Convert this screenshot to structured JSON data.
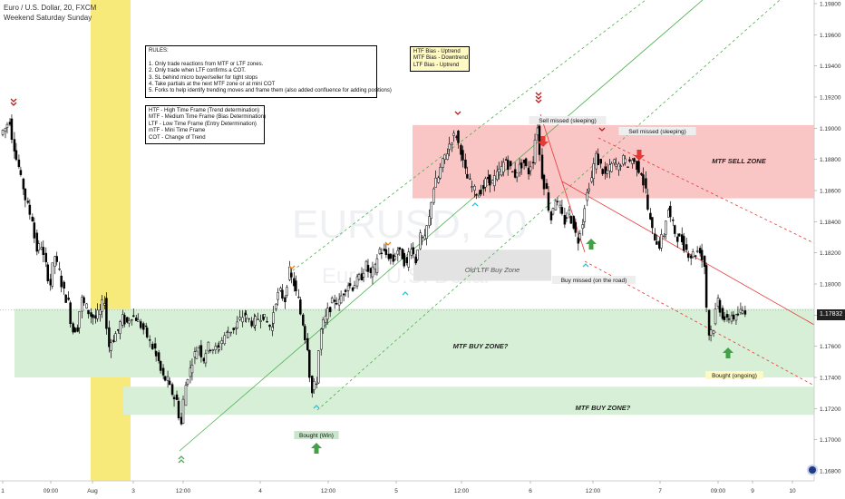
{
  "header": {
    "symbol_line": "Euro / U.S. Dollar, 20, FXCM",
    "session_line": "Weekend Saturday Sunday"
  },
  "watermark": {
    "symbol": "EURUSD, 20",
    "name": "Euro / U.S. Dollar"
  },
  "rules_box": {
    "lines": [
      "RULES:",
      "",
      "1. Only trade reactions from MTF or LTF zones.",
      "2. Only trade when LTF confirms a COT.",
      "3. SL behind micro buyer/seller for tight stops",
      "4. Take partials at the next MTF zone or at mini COT",
      "5. Forks to help identify trending moves and frame them (also added confluence for adding positions)"
    ]
  },
  "legend_box": {
    "lines": [
      "HTF - High Time Frame (Trend determination)",
      "MTF - Medium Time Frame (Bias Determination)",
      "LTF - Low Time Frame (Entry Determination)",
      "mTF - Mini Time Frame",
      "COT - Change of Trend"
    ]
  },
  "bias_box": {
    "lines": [
      "HTF Bias - Uptrend",
      "MTF Bias - Downtrend",
      "LTF Bias - Uptrend"
    ]
  },
  "current_price": "1.17832",
  "colors": {
    "up": "#26a69a",
    "down": "#ef5350",
    "candle": "#000000",
    "buy_zone": "#d7efd7",
    "sell_zone": "#f9c5c5",
    "ltf_zone": "#e3e3e3",
    "weekend": "#f7e97a",
    "fork_green": "#4caf50",
    "fork_red": "#e53935",
    "arrow_green": "#43a047",
    "arrow_red": "#e53935",
    "marker_orange": "#f57c00",
    "marker_darkred": "#b71c1c",
    "marker_cyan": "#26c6da"
  },
  "chart_data": {
    "type": "candlestick",
    "title": "Euro / U.S. Dollar, 20, FXCM",
    "ylim": [
      1.1675,
      1.198
    ],
    "y_ticks": [
      "1.16800",
      "1.17000",
      "1.17200",
      "1.17400",
      "1.17600",
      "1.17800",
      "1.18000",
      "1.18200",
      "1.18400",
      "1.18600",
      "1.18800",
      "1.19000",
      "1.19200",
      "1.19400",
      "1.19600",
      "1.19800"
    ],
    "x_ticks": [
      "1",
      "09:00",
      "Aug",
      "3",
      "12:00",
      "4",
      "12:00",
      "5",
      "12:00",
      "6",
      "12:00",
      "7",
      "09:00",
      "9",
      "10"
    ],
    "grid": false,
    "zones": [
      {
        "label": "MTF SELL ZONE",
        "low": 1.1855,
        "high": 1.1902
      },
      {
        "label": "MTF BUY ZONE?",
        "low": 1.174,
        "high": 1.1784
      },
      {
        "label": "MTF BUY ZONE?",
        "low": 1.1716,
        "high": 1.1734
      },
      {
        "label": "Old LTF Buy Zone",
        "low": 1.1802,
        "high": 1.1822
      }
    ],
    "annotations": [
      "Bought (Win)",
      "Sell missed (sleeping)",
      "Sell missed (sleeping)",
      "Buy missed (on the road)",
      "Bought (ongoing)"
    ],
    "price_path": [
      [
        0,
        1.1896
      ],
      [
        5,
        1.19
      ],
      [
        10,
        1.1905
      ],
      [
        15,
        1.1888
      ],
      [
        20,
        1.1875
      ],
      [
        25,
        1.1862
      ],
      [
        30,
        1.185
      ],
      [
        35,
        1.1842
      ],
      [
        40,
        1.1822
      ],
      [
        45,
        1.1825
      ],
      [
        50,
        1.1812
      ],
      [
        55,
        1.18
      ],
      [
        60,
        1.1818
      ],
      [
        65,
        1.1808
      ],
      [
        70,
        1.1795
      ],
      [
        75,
        1.1788
      ],
      [
        80,
        1.177
      ],
      [
        85,
        1.1772
      ],
      [
        90,
        1.179
      ],
      [
        95,
        1.1785
      ],
      [
        100,
        1.178
      ],
      [
        105,
        1.1778
      ],
      [
        110,
        1.1782
      ],
      [
        115,
        1.179
      ],
      [
        120,
        1.176
      ],
      [
        125,
        1.1765
      ],
      [
        130,
        1.177
      ],
      [
        135,
        1.1778
      ],
      [
        140,
        1.1775
      ],
      [
        145,
        1.178
      ],
      [
        150,
        1.1778
      ],
      [
        160,
        1.177
      ],
      [
        170,
        1.1758
      ],
      [
        175,
        1.175
      ],
      [
        180,
        1.174
      ],
      [
        185,
        1.1738
      ],
      [
        190,
        1.173
      ],
      [
        195,
        1.1725
      ],
      [
        200,
        1.171
      ],
      [
        205,
        1.1735
      ],
      [
        210,
        1.1745
      ],
      [
        215,
        1.1755
      ],
      [
        220,
        1.176
      ],
      [
        225,
        1.1752
      ],
      [
        230,
        1.176
      ],
      [
        240,
        1.1758
      ],
      [
        250,
        1.1768
      ],
      [
        260,
        1.1772
      ],
      [
        270,
        1.178
      ],
      [
        280,
        1.1775
      ],
      [
        290,
        1.178
      ],
      [
        300,
        1.1772
      ],
      [
        305,
        1.179
      ],
      [
        310,
        1.1795
      ],
      [
        315,
        1.179
      ],
      [
        320,
        1.1808
      ],
      [
        325,
        1.18
      ],
      [
        330,
        1.179
      ],
      [
        335,
        1.1775
      ],
      [
        340,
        1.176
      ],
      [
        345,
        1.173
      ],
      [
        350,
        1.1738
      ],
      [
        355,
        1.177
      ],
      [
        360,
        1.1778
      ],
      [
        365,
        1.1785
      ],
      [
        370,
        1.179
      ],
      [
        375,
        1.1788
      ],
      [
        380,
        1.1795
      ],
      [
        385,
        1.18
      ],
      [
        390,
        1.1798
      ],
      [
        395,
        1.1802
      ],
      [
        400,
        1.1805
      ],
      [
        405,
        1.1812
      ],
      [
        410,
        1.1806
      ],
      [
        415,
        1.181
      ],
      [
        420,
        1.1822
      ],
      [
        425,
        1.182
      ],
      [
        430,
        1.1818
      ],
      [
        435,
        1.1815
      ],
      [
        440,
        1.1822
      ],
      [
        445,
        1.1818
      ],
      [
        450,
        1.1812
      ],
      [
        455,
        1.1825
      ],
      [
        460,
        1.1815
      ],
      [
        465,
        1.183
      ],
      [
        470,
        1.1828
      ],
      [
        475,
        1.1842
      ],
      [
        480,
        1.1862
      ],
      [
        485,
        1.1868
      ],
      [
        490,
        1.1878
      ],
      [
        495,
        1.1885
      ],
      [
        500,
        1.1893
      ],
      [
        505,
        1.1896
      ],
      [
        510,
        1.1886
      ],
      [
        515,
        1.1872
      ],
      [
        520,
        1.1865
      ],
      [
        525,
        1.186
      ],
      [
        530,
        1.1858
      ],
      [
        535,
        1.1862
      ],
      [
        540,
        1.1868
      ],
      [
        545,
        1.1865
      ],
      [
        550,
        1.187
      ],
      [
        555,
        1.1874
      ],
      [
        560,
        1.188
      ],
      [
        565,
        1.1874
      ],
      [
        570,
        1.187
      ],
      [
        575,
        1.1875
      ],
      [
        580,
        1.1878
      ],
      [
        585,
        1.1872
      ],
      [
        590,
        1.188
      ],
      [
        595,
        1.1902
      ],
      [
        600,
        1.187
      ],
      [
        605,
        1.186
      ],
      [
        610,
        1.1842
      ],
      [
        615,
        1.1855
      ],
      [
        620,
        1.1848
      ],
      [
        625,
        1.184
      ],
      [
        630,
        1.1846
      ],
      [
        635,
        1.1838
      ],
      [
        640,
        1.1828
      ],
      [
        645,
        1.184
      ],
      [
        650,
        1.1858
      ],
      [
        655,
        1.1868
      ],
      [
        660,
        1.1882
      ],
      [
        665,
        1.1876
      ],
      [
        670,
        1.187
      ],
      [
        675,
        1.1874
      ],
      [
        680,
        1.1878
      ],
      [
        685,
        1.1875
      ],
      [
        690,
        1.188
      ],
      [
        695,
        1.1877
      ],
      [
        700,
        1.188
      ],
      [
        705,
        1.1876
      ],
      [
        710,
        1.1872
      ],
      [
        715,
        1.186
      ],
      [
        720,
        1.184
      ],
      [
        725,
        1.183
      ],
      [
        730,
        1.1825
      ],
      [
        735,
        1.1832
      ],
      [
        740,
        1.1848
      ],
      [
        745,
        1.1838
      ],
      [
        750,
        1.183
      ],
      [
        755,
        1.1828
      ],
      [
        760,
        1.1822
      ],
      [
        765,
        1.1818
      ],
      [
        770,
        1.182
      ],
      [
        775,
        1.1822
      ],
      [
        780,
        1.1812
      ],
      [
        785,
        1.1768
      ],
      [
        790,
        1.1772
      ],
      [
        795,
        1.179
      ],
      [
        800,
        1.178
      ],
      [
        805,
        1.1776
      ],
      [
        810,
        1.178
      ],
      [
        815,
        1.1778
      ],
      [
        820,
        1.1782
      ],
      [
        825,
        1.1783
      ]
    ]
  }
}
